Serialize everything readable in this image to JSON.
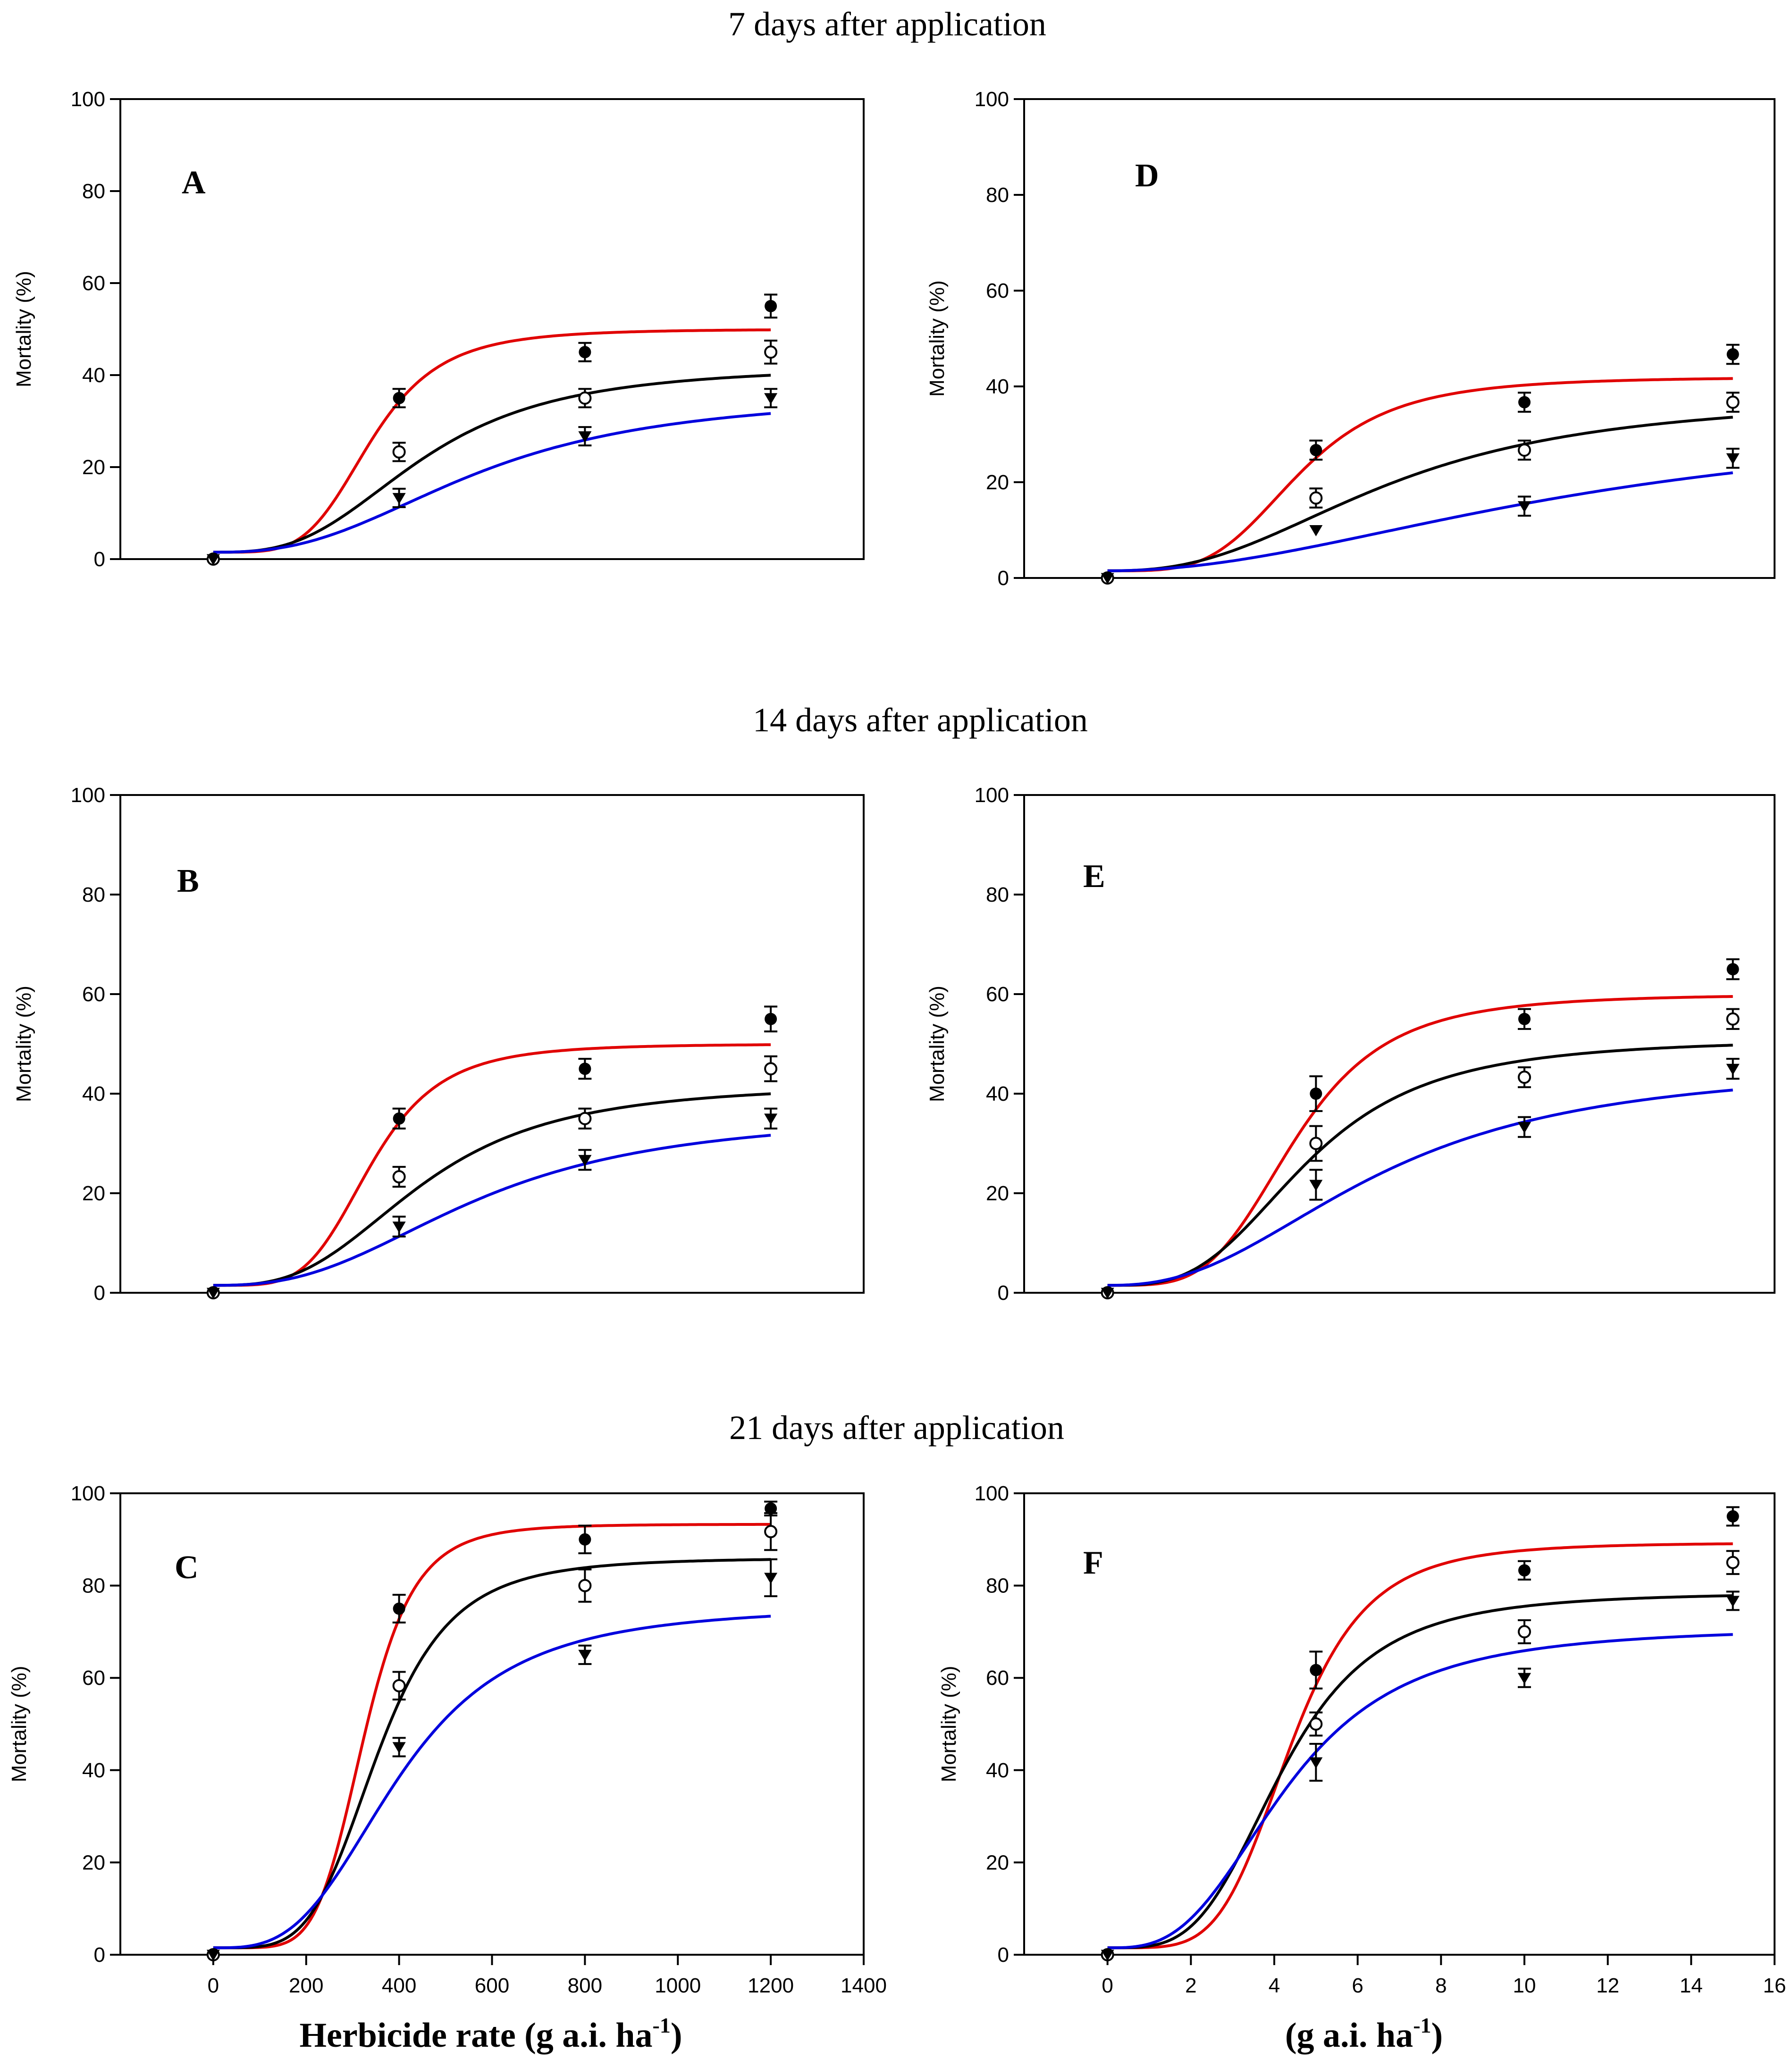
{
  "section_titles": [
    "7 days after application",
    "14 days after application",
    "21 days after application"
  ],
  "x_axis_label_left": "Herbicide rate (g a.i. ha",
  "x_axis_label_right": "(g a.i. ha",
  "x_axis_label_sup": "-1",
  "x_axis_label_close": ")",
  "colors": {
    "red": "#e00000",
    "black": "#000000",
    "blue": "#0000dd"
  },
  "series_names": [
    "filled-circle",
    "open-circle",
    "filled-triangle"
  ],
  "chart_data": [
    {
      "panel": "A",
      "type": "scatter",
      "section": "7 days after application",
      "ylabel": "Mortality (%)",
      "ylim": [
        0,
        100
      ],
      "yticks": [
        0,
        20,
        40,
        60,
        80,
        100
      ],
      "xlim": [
        -200,
        1400
      ],
      "xticks": [],
      "xticklabels": [],
      "series": [
        {
          "name": "filled-circle",
          "x": [
            0,
            400,
            800,
            1200
          ],
          "y": [
            0,
            35,
            45,
            55
          ],
          "err": [
            0,
            2,
            2,
            2.5
          ],
          "fit": {
            "top": 50,
            "x50": 340,
            "hill": 4.5,
            "color": "red"
          }
        },
        {
          "name": "open-circle",
          "x": [
            0,
            400,
            800,
            1200
          ],
          "y": [
            0,
            23.3,
            35,
            45
          ],
          "err": [
            0,
            2,
            2,
            2.5
          ],
          "fit": {
            "top": 42,
            "x50": 450,
            "hill": 3.0,
            "color": "black"
          }
        },
        {
          "name": "filled-triangle",
          "x": [
            0,
            400,
            800,
            1200
          ],
          "y": [
            0,
            13.3,
            26.7,
            35
          ],
          "err": [
            0,
            2,
            2,
            2
          ],
          "fit": {
            "top": 36,
            "x50": 570,
            "hill": 2.6,
            "color": "blue"
          }
        }
      ]
    },
    {
      "panel": "D",
      "type": "scatter",
      "section": "7 days after application",
      "ylabel": "Mortality (%)",
      "ylim": [
        0,
        100
      ],
      "yticks": [
        0,
        20,
        40,
        60,
        80,
        100
      ],
      "xlim": [
        -2,
        16
      ],
      "xticks": [],
      "xticklabels": [],
      "series": [
        {
          "name": "filled-circle",
          "x": [
            0,
            5,
            10,
            15
          ],
          "y": [
            0,
            26.7,
            36.7,
            46.7
          ],
          "err": [
            0,
            2,
            2,
            2
          ],
          "fit": {
            "top": 42,
            "x50": 4.6,
            "hill": 4.0,
            "color": "red"
          }
        },
        {
          "name": "open-circle",
          "x": [
            0,
            5,
            10,
            15
          ],
          "y": [
            0,
            16.7,
            26.7,
            36.7
          ],
          "err": [
            0,
            2,
            2,
            2
          ],
          "fit": {
            "top": 38,
            "x50": 6.8,
            "hill": 2.5,
            "color": "black"
          }
        },
        {
          "name": "filled-triangle",
          "x": [
            0,
            5,
            10,
            15
          ],
          "y": [
            0,
            10,
            15,
            25
          ],
          "err": [
            0,
            0,
            2,
            2
          ],
          "fit": {
            "top": 34,
            "x50": 11.5,
            "hill": 2.0,
            "color": "blue"
          }
        }
      ]
    },
    {
      "panel": "B",
      "type": "scatter",
      "section": "14 days after application",
      "ylabel": "Mortality (%)",
      "ylim": [
        0,
        100
      ],
      "yticks": [
        0,
        20,
        40,
        60,
        80,
        100
      ],
      "xlim": [
        -200,
        1400
      ],
      "xticks": [],
      "xticklabels": [],
      "series": [
        {
          "name": "filled-circle",
          "x": [
            0,
            400,
            800,
            1200
          ],
          "y": [
            0,
            35,
            45,
            55
          ],
          "err": [
            0,
            2,
            2,
            2.5
          ],
          "fit": {
            "top": 50,
            "x50": 340,
            "hill": 4.5,
            "color": "red"
          }
        },
        {
          "name": "open-circle",
          "x": [
            0,
            400,
            800,
            1200
          ],
          "y": [
            0,
            23.3,
            35,
            45
          ],
          "err": [
            0,
            2,
            2,
            2.5
          ],
          "fit": {
            "top": 42,
            "x50": 450,
            "hill": 3.0,
            "color": "black"
          }
        },
        {
          "name": "filled-triangle",
          "x": [
            0,
            400,
            800,
            1200
          ],
          "y": [
            0,
            13.3,
            26.7,
            35
          ],
          "err": [
            0,
            2,
            2,
            2
          ],
          "fit": {
            "top": 36,
            "x50": 570,
            "hill": 2.6,
            "color": "blue"
          }
        }
      ]
    },
    {
      "panel": "E",
      "type": "scatter",
      "section": "14 days after application",
      "ylabel": "Mortality (%)",
      "ylim": [
        0,
        100
      ],
      "yticks": [
        0,
        20,
        40,
        60,
        80,
        100
      ],
      "xlim": [
        -2,
        16
      ],
      "xticks": [],
      "xticklabels": [],
      "series": [
        {
          "name": "filled-circle",
          "x": [
            0,
            5,
            10,
            15
          ],
          "y": [
            0,
            40,
            55,
            65
          ],
          "err": [
            0,
            3.5,
            2,
            2
          ],
          "fit": {
            "top": 60,
            "x50": 4.5,
            "hill": 4.0,
            "color": "red"
          }
        },
        {
          "name": "open-circle",
          "x": [
            0,
            5,
            10,
            15
          ],
          "y": [
            0,
            30,
            43.3,
            55
          ],
          "err": [
            0,
            3.5,
            2,
            2
          ],
          "fit": {
            "top": 51,
            "x50": 4.8,
            "hill": 3.2,
            "color": "black"
          }
        },
        {
          "name": "filled-triangle",
          "x": [
            0,
            5,
            10,
            15
          ],
          "y": [
            0,
            21.7,
            33.3,
            45
          ],
          "err": [
            0,
            3,
            2,
            2
          ],
          "fit": {
            "top": 46,
            "x50": 6.5,
            "hill": 2.4,
            "color": "blue"
          }
        }
      ]
    },
    {
      "panel": "C",
      "type": "scatter",
      "section": "21 days after application",
      "ylabel": "Mortality (%)",
      "ylim": [
        0,
        100
      ],
      "yticks": [
        0,
        20,
        40,
        60,
        80,
        100
      ],
      "xlim": [
        -200,
        1400
      ],
      "xticks": [
        0,
        200,
        400,
        600,
        800,
        1000,
        1200,
        1400
      ],
      "xticklabels": [
        "0",
        "200",
        "400",
        "600",
        "800",
        "1000",
        "1200",
        "1400"
      ],
      "series": [
        {
          "name": "filled-circle",
          "x": [
            0,
            400,
            800,
            1200
          ],
          "y": [
            0,
            75,
            90,
            96.7
          ],
          "err": [
            0,
            3,
            3,
            1.5
          ],
          "fit": {
            "top": 93.3,
            "x50": 325,
            "hill": 6.0,
            "color": "red"
          }
        },
        {
          "name": "open-circle",
          "x": [
            0,
            400,
            800,
            1200
          ],
          "y": [
            0,
            58.3,
            80,
            91.7
          ],
          "err": [
            0,
            3,
            3.5,
            4
          ],
          "fit": {
            "top": 86,
            "x50": 355,
            "hill": 4.5,
            "color": "black"
          }
        },
        {
          "name": "filled-triangle",
          "x": [
            0,
            400,
            800,
            1200
          ],
          "y": [
            0,
            45,
            65,
            81.7
          ],
          "err": [
            0,
            2,
            2,
            4
          ],
          "fit": {
            "top": 75.5,
            "x50": 400,
            "hill": 3.2,
            "color": "blue"
          }
        }
      ]
    },
    {
      "panel": "F",
      "type": "scatter",
      "section": "21 days after application",
      "ylabel": "Mortality (%)",
      "ylim": [
        0,
        100
      ],
      "yticks": [
        0,
        20,
        40,
        60,
        80,
        100
      ],
      "xlim": [
        -2,
        16
      ],
      "xticks": [
        0,
        2,
        4,
        6,
        8,
        10,
        12,
        14,
        16
      ],
      "xticklabels": [
        "0",
        "2",
        "4",
        "6",
        "8",
        "10",
        "12",
        "14",
        "16"
      ],
      "series": [
        {
          "name": "filled-circle",
          "x": [
            0,
            5,
            10,
            15
          ],
          "y": [
            0,
            61.7,
            83.3,
            95
          ],
          "err": [
            0,
            4,
            2,
            2
          ],
          "fit": {
            "top": 89.3,
            "x50": 4.4,
            "hill": 4.8,
            "color": "red"
          }
        },
        {
          "name": "open-circle",
          "x": [
            0,
            5,
            10,
            15
          ],
          "y": [
            0,
            50,
            70,
            85
          ],
          "err": [
            0,
            2.5,
            2.5,
            2.5
          ],
          "fit": {
            "top": 78.5,
            "x50": 4.2,
            "hill": 3.7,
            "color": "black"
          }
        },
        {
          "name": "filled-triangle",
          "x": [
            0,
            5,
            10,
            15
          ],
          "y": [
            0,
            41.7,
            60,
            76.7
          ],
          "err": [
            0,
            4,
            2,
            2
          ],
          "fit": {
            "top": 71,
            "x50": 4.3,
            "hill": 3.0,
            "color": "blue"
          }
        }
      ]
    }
  ]
}
